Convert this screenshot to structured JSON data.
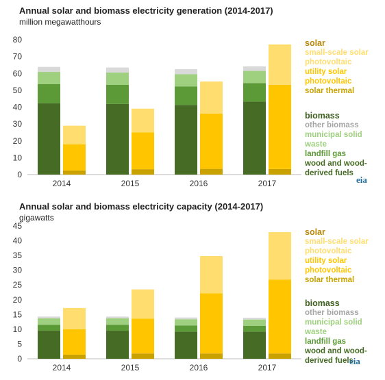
{
  "palette": {
    "solar_thermal": "#c9a200",
    "utility_pv": "#ffc600",
    "small_scale_pv": "#ffdd6e",
    "wood": "#456b24",
    "landfill": "#5b9a37",
    "msw": "#9fd07f",
    "other_biomass": "#d9d9d9",
    "solar_label": "#b8860b",
    "biomass_label": "#3d5e1e"
  },
  "charts": [
    {
      "title": "Annual solar and biomass electricity generation (2014-2017)",
      "unit": "million megawatthours",
      "logo": "eia",
      "legend": {
        "solar_head": "solar",
        "solar_items": [
          {
            "label": "small-scale solar photovoltaic",
            "lines": [
              "small-scale solar",
              "photovoltaic"
            ],
            "color_key": "small_scale_pv"
          },
          {
            "label": "utility solar photovoltaic",
            "lines": [
              "utility solar",
              "photovoltaic"
            ],
            "color_key": "utility_pv"
          },
          {
            "label": "solar thermal",
            "lines": [
              "solar thermal"
            ],
            "color_key": "solar_thermal"
          }
        ],
        "biomass_head": "biomass",
        "biomass_items": [
          {
            "label": "other biomass",
            "lines": [
              "other biomass"
            ],
            "color_key": "other_biomass"
          },
          {
            "label": "municipal solid waste",
            "lines": [
              "municipal solid",
              "waste"
            ],
            "color_key": "msw"
          },
          {
            "label": "landfill gas",
            "lines": [
              "landfill gas"
            ],
            "color_key": "landfill"
          },
          {
            "label": "wood and wood-derived fuels",
            "lines": [
              "wood and wood-",
              "derived fuels"
            ],
            "color_key": "wood"
          }
        ]
      },
      "chart_data": {
        "type": "bar",
        "stacked": true,
        "categories": [
          "2014",
          "2015",
          "2016",
          "2017"
        ],
        "ylim": [
          0,
          80
        ],
        "yticks": [
          0,
          10,
          20,
          30,
          40,
          50,
          60,
          70,
          80
        ],
        "grid": false,
        "legend_position": "right",
        "biomass_series": [
          {
            "name": "wood and wood-derived fuels",
            "values": [
              42.3,
              41.9,
              41.3,
              43.3
            ]
          },
          {
            "name": "landfill gas",
            "values": [
              11.3,
              11.3,
              11.0,
              11.0
            ]
          },
          {
            "name": "municipal solid waste",
            "values": [
              7.3,
              7.3,
              7.2,
              7.2
            ]
          },
          {
            "name": "other biomass",
            "values": [
              3.0,
              3.0,
              3.0,
              2.7
            ]
          }
        ],
        "solar_series": [
          {
            "name": "solar thermal",
            "values": [
              2.4,
              3.2,
              3.4,
              3.3
            ]
          },
          {
            "name": "utility solar photovoltaic",
            "values": [
              15.6,
              21.8,
              32.8,
              50.0
            ]
          },
          {
            "name": "small-scale solar photovoltaic",
            "values": [
              11.0,
              14.1,
              19.0,
              23.9
            ]
          }
        ]
      }
    },
    {
      "title": "Annual solar and biomass electricity capacity (2014-2017)",
      "unit": "gigawatts",
      "logo": "eia",
      "legend": {
        "solar_head": "solar",
        "solar_items": [
          {
            "label": "small-scale solar photovoltaic",
            "lines": [
              "small-scale solar",
              "photovoltaic"
            ],
            "color_key": "small_scale_pv"
          },
          {
            "label": "utility solar photovoltaic",
            "lines": [
              "utility solar",
              "photovoltaic"
            ],
            "color_key": "utility_pv"
          },
          {
            "label": "solar thermal",
            "lines": [
              "solar thermal"
            ],
            "color_key": "solar_thermal"
          }
        ],
        "biomass_head": "biomass",
        "biomass_items": [
          {
            "label": "other biomass",
            "lines": [
              "other biomass"
            ],
            "color_key": "other_biomass"
          },
          {
            "label": "municipal solid waste",
            "lines": [
              "municipal solid",
              "waste"
            ],
            "color_key": "msw"
          },
          {
            "label": "landfill gas",
            "lines": [
              "landfill gas"
            ],
            "color_key": "landfill"
          },
          {
            "label": "wood and wood-derived fuels",
            "lines": [
              "wood and wood-",
              "derived fuels"
            ],
            "color_key": "wood"
          }
        ]
      },
      "chart_data": {
        "type": "bar",
        "stacked": true,
        "categories": [
          "2014",
          "2015",
          "2016",
          "2017"
        ],
        "ylim": [
          0,
          45
        ],
        "yticks": [
          0,
          5,
          10,
          15,
          20,
          25,
          30,
          35,
          40,
          45
        ],
        "grid": false,
        "legend_position": "right",
        "biomass_series": [
          {
            "name": "wood and wood-derived fuels",
            "values": [
              9.5,
              9.5,
              9.2,
              9.2
            ]
          },
          {
            "name": "landfill gas",
            "values": [
              2.0,
              2.0,
              2.1,
              2.0
            ]
          },
          {
            "name": "municipal solid waste",
            "values": [
              2.2,
              2.2,
              2.1,
              2.1
            ]
          },
          {
            "name": "other biomass",
            "values": [
              0.6,
              0.6,
              0.6,
              0.6
            ]
          }
        ],
        "solar_series": [
          {
            "name": "solar thermal",
            "values": [
              1.4,
              1.8,
              1.8,
              1.8
            ]
          },
          {
            "name": "utility solar photovoltaic",
            "values": [
              8.6,
              11.8,
              20.4,
              25.0
            ]
          },
          {
            "name": "small-scale solar photovoltaic",
            "values": [
              7.2,
              9.9,
              12.6,
              16.1
            ]
          }
        ]
      }
    }
  ]
}
